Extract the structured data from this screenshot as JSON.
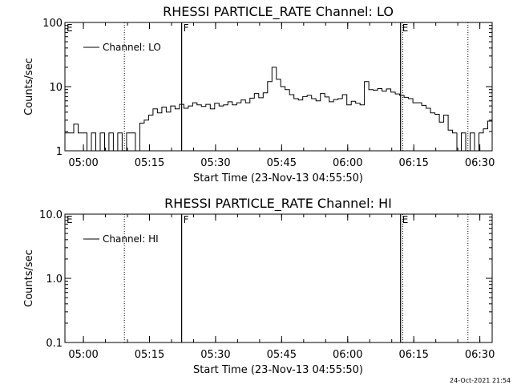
{
  "chart_data": [
    {
      "type": "line",
      "title": "RHESSI PARTICLE_RATE Channel: LO",
      "xlabel": "Start Time (23-Nov-13 04:55:50)",
      "ylabel": "Counts/sec",
      "yscale": "log",
      "ylim": [
        1,
        100
      ],
      "y_ticks": [
        "1",
        "10",
        "100"
      ],
      "xlim_min": [
        0,
        97
      ],
      "x_ticks": [
        "05:00",
        "05:15",
        "05:30",
        "05:45",
        "06:00",
        "06:15",
        "06:30"
      ],
      "grid": false,
      "legend": {
        "position": "top-left"
      },
      "series": [
        {
          "name": "Channel: LO",
          "x": [
            0,
            1,
            2,
            3,
            4,
            5,
            6,
            7,
            8,
            9,
            10,
            11,
            12,
            13,
            14,
            15,
            16,
            17,
            18,
            19,
            20,
            21,
            22,
            23,
            24,
            25,
            26,
            27,
            28,
            29,
            30,
            31,
            32,
            33,
            34,
            35,
            36,
            37,
            38,
            39,
            40,
            41,
            42,
            43,
            44,
            45,
            46,
            47,
            48,
            49,
            50,
            51,
            52,
            53,
            54,
            55,
            56,
            57,
            58,
            59,
            60,
            61,
            62,
            63,
            64,
            65,
            66,
            67,
            68,
            69,
            70,
            71,
            72,
            73,
            74,
            75,
            76,
            77,
            78,
            79,
            80,
            81,
            82,
            83,
            84,
            85,
            86,
            87,
            88,
            89,
            90,
            91,
            92,
            93,
            94,
            95,
            96,
            97
          ],
          "y": [
            1.9,
            1.9,
            2.6,
            1.9,
            1.9,
            1.0,
            1.9,
            1.0,
            1.9,
            1.0,
            1.9,
            1.0,
            1.9,
            1.0,
            1.9,
            1.9,
            1.0,
            2.7,
            3.0,
            3.6,
            4.5,
            3.9,
            4.8,
            4.0,
            5.0,
            4.5,
            5.3,
            4.6,
            5.0,
            5.6,
            5.2,
            4.9,
            5.3,
            4.5,
            5.5,
            5.0,
            5.2,
            5.8,
            5.2,
            5.6,
            6.2,
            5.6,
            6.6,
            7.8,
            6.7,
            8.0,
            12.0,
            20.0,
            13.0,
            10.0,
            9.0,
            7.5,
            6.5,
            6.2,
            7.0,
            7.3,
            6.5,
            6.0,
            7.8,
            6.9,
            5.8,
            6.3,
            6.5,
            7.5,
            5.2,
            5.9,
            5.5,
            5.2,
            12.0,
            9.0,
            8.8,
            9.3,
            8.5,
            9.2,
            8.2,
            7.7,
            7.3,
            6.8,
            6.5,
            5.6,
            5.6,
            5.1,
            4.6,
            3.9,
            3.7,
            2.8,
            3.6,
            2.1,
            1.9,
            1.0,
            1.9,
            1.0,
            1.9,
            1.0,
            1.9,
            2.2,
            2.9,
            6.0
          ]
        }
      ],
      "annotations": [
        {
          "label": "E",
          "x": 0
        },
        {
          "label": "F",
          "x": 26.5
        },
        {
          "label": "E",
          "x": 76.2
        }
      ],
      "vlines_dotted": [
        13.5,
        76.7,
        91.5
      ]
    },
    {
      "type": "line",
      "title": "RHESSI PARTICLE_RATE Channel: HI",
      "xlabel": "Start Time (23-Nov-13 04:55:50)",
      "ylabel": "Counts/sec",
      "yscale": "log",
      "ylim": [
        0.1,
        10
      ],
      "y_ticks": [
        "0.1",
        "1.0",
        "10.0"
      ],
      "xlim_min": [
        0,
        97
      ],
      "x_ticks": [
        "05:00",
        "05:15",
        "05:30",
        "05:45",
        "06:00",
        "06:15",
        "06:30"
      ],
      "grid": false,
      "legend": {
        "position": "top-left"
      },
      "series": [
        {
          "name": "Channel: HI",
          "x": [],
          "y": []
        }
      ],
      "annotations": [
        {
          "label": "E",
          "x": 0
        },
        {
          "label": "F",
          "x": 26.5
        },
        {
          "label": "E",
          "x": 76.2
        }
      ],
      "vlines_dotted": [
        13.5,
        76.7,
        91.5
      ]
    }
  ],
  "timestamp": "24-Oct-2021 21:54"
}
